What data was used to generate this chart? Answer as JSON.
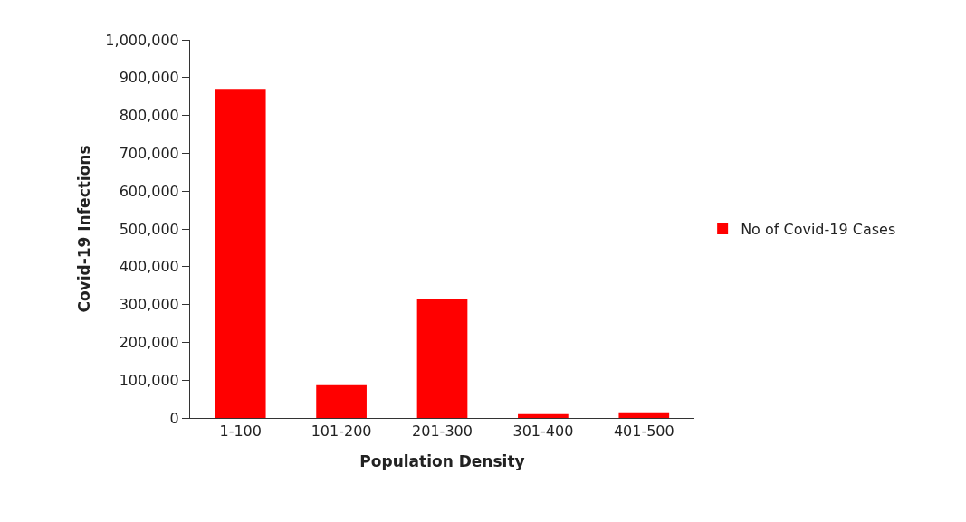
{
  "chart_data": {
    "type": "bar",
    "xlabel": "Population Density",
    "ylabel": "Covid-19 Infections",
    "categories": [
      "1-100",
      "101-200",
      "201-300",
      "301-400",
      "401-500"
    ],
    "series": [
      {
        "name": "No of Covid-19 Cases",
        "color": "#ff0000",
        "values": [
          870000,
          87000,
          314000,
          10000,
          15000
        ]
      }
    ],
    "ylim": [
      0,
      1000000
    ],
    "yticks": [
      {
        "value": 0,
        "label": "0"
      },
      {
        "value": 100000,
        "label": "100,000"
      },
      {
        "value": 200000,
        "label": "200,000"
      },
      {
        "value": 300000,
        "label": "300,000"
      },
      {
        "value": 400000,
        "label": "400,000"
      },
      {
        "value": 500000,
        "label": "500,000"
      },
      {
        "value": 600000,
        "label": "600,000"
      },
      {
        "value": 700000,
        "label": "700,000"
      },
      {
        "value": 800000,
        "label": "800,000"
      },
      {
        "value": 900000,
        "label": "900,000"
      },
      {
        "value": 1000000,
        "label": "1,000,000"
      }
    ],
    "grid": false,
    "legend": "right"
  }
}
